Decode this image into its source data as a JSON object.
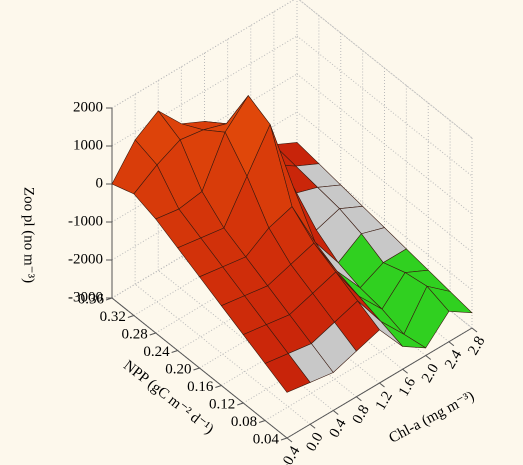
{
  "chart_data": {
    "type": "surface3d",
    "x_label": "Chl-a (mg m⁻³)",
    "y_label": "NPP (gC m⁻² d⁻¹)",
    "z_label": "Zoo pl (no m⁻³)",
    "x": [
      -0.4,
      0.0,
      0.4,
      0.8,
      1.2,
      1.6,
      2.0,
      2.4,
      2.8
    ],
    "y": [
      0.04,
      0.08,
      0.12,
      0.16,
      0.2,
      0.24,
      0.28,
      0.32,
      0.36
    ],
    "z": [
      [
        -1800,
        -1900,
        -2000,
        -1800,
        -1600,
        -2400,
        -2800,
        -2200,
        -2600
      ],
      [
        -1500,
        -1600,
        -1700,
        -1500,
        -1300,
        -2200,
        -2900,
        -2000,
        -2500
      ],
      [
        -1200,
        -1300,
        -1400,
        -1200,
        -1000,
        -2000,
        -2700,
        -2100,
        -2400
      ],
      [
        -900,
        -1000,
        -1100,
        -900,
        -700,
        -1800,
        -2600,
        -2300,
        -2300
      ],
      [
        -600,
        -700,
        -800,
        -400,
        -200,
        -1500,
        -2400,
        -2000,
        -2200
      ],
      [
        -300,
        -400,
        -500,
        500,
        1500,
        -500,
        -2000,
        -1800,
        -2100
      ],
      [
        0,
        -100,
        0,
        1200,
        1800,
        500,
        -1500,
        -1700,
        -2000
      ],
      [
        200,
        600,
        900,
        800,
        600,
        0,
        -1200,
        -1600,
        -1900
      ],
      [
        0,
        800,
        1200,
        500,
        200,
        -300,
        -1000,
        -1500,
        -1800
      ]
    ],
    "xlim": [
      -0.4,
      2.8
    ],
    "xticks": [
      {
        "value": -0.4,
        "label": "-0.4"
      },
      {
        "value": 0.0,
        "label": "0.0"
      },
      0.4,
      0.8,
      1.2,
      1.6,
      {
        "value": 2.0,
        "label": "2.0"
      },
      2.4,
      2.8
    ],
    "ylim": [
      0.04,
      0.36
    ],
    "yticks": [
      0.04,
      0.08,
      0.12,
      0.16,
      {
        "value": 0.2,
        "label": "0.20"
      },
      0.24,
      0.28,
      0.32,
      0.36
    ],
    "zlim": [
      -3000,
      2000
    ],
    "zticks": [
      -3000,
      -2000,
      -1000,
      0,
      1000,
      2000
    ],
    "grid": true
  }
}
